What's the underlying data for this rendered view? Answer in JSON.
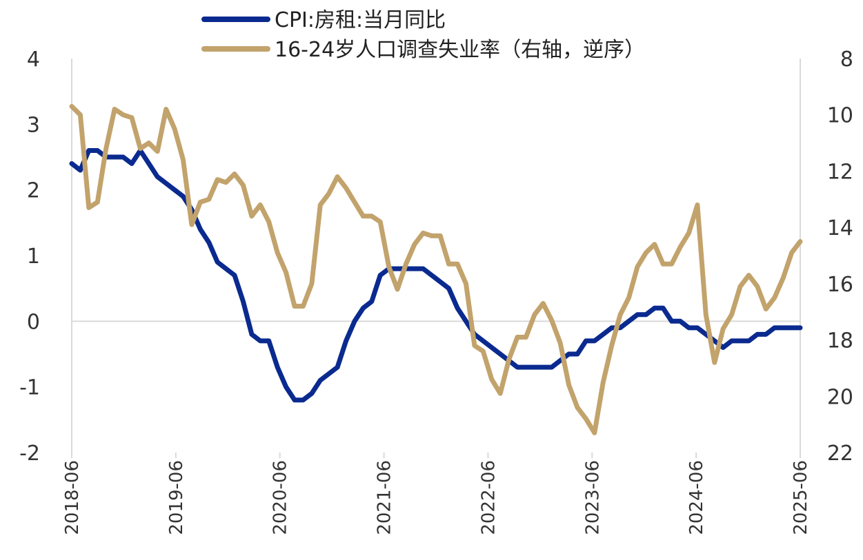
{
  "chart_data": {
    "type": "line",
    "title": "",
    "x_tick_labels": [
      "2018-06",
      "2019-06",
      "2020-06",
      "2021-06",
      "2022-06",
      "2023-06",
      "2024-06",
      "2025-06"
    ],
    "x_start": "2018-06",
    "x_end": "2025-06",
    "ylim_left": [
      -2,
      4
    ],
    "yticks_left": [
      "4",
      "3",
      "2",
      "1",
      "0",
      "-1",
      "-2"
    ],
    "ylim_right": [
      8,
      22
    ],
    "yticks_right": [
      "8",
      "10",
      "12",
      "14",
      "16",
      "18",
      "20",
      "22"
    ],
    "right_axis_inverted": true,
    "legend": [
      {
        "name": "CPI:房租:当月同比",
        "axis": "left",
        "color": "#0a2a8f"
      },
      {
        "name": "16-24岁人口调查失业率（右轴，逆序）",
        "axis": "right",
        "color": "#c2a36c"
      }
    ],
    "series": [
      {
        "name": "CPI:房租:当月同比",
        "axis": "left",
        "color": "#0a2a8f",
        "values": [
          2.4,
          2.3,
          2.6,
          2.6,
          2.5,
          2.5,
          2.5,
          2.4,
          2.6,
          2.4,
          2.2,
          2.1,
          2.0,
          1.9,
          1.7,
          1.4,
          1.2,
          0.9,
          0.8,
          0.7,
          0.3,
          -0.2,
          -0.3,
          -0.3,
          -0.7,
          -1.0,
          -1.2,
          -1.2,
          -1.1,
          -0.9,
          -0.8,
          -0.7,
          -0.3,
          0.0,
          0.2,
          0.3,
          0.7,
          0.8,
          0.8,
          0.8,
          0.8,
          0.8,
          0.7,
          0.6,
          0.5,
          0.2,
          0.0,
          -0.2,
          -0.3,
          -0.4,
          -0.5,
          -0.6,
          -0.7,
          -0.7,
          -0.7,
          -0.7,
          -0.7,
          -0.6,
          -0.5,
          -0.5,
          -0.3,
          -0.3,
          -0.2,
          -0.1,
          -0.1,
          0.0,
          0.1,
          0.1,
          0.2,
          0.2,
          0.0,
          0.0,
          -0.1,
          -0.1,
          -0.2,
          -0.3,
          -0.4,
          -0.3,
          -0.3,
          -0.3,
          -0.2,
          -0.2,
          -0.1,
          -0.1,
          -0.1,
          -0.1
        ]
      },
      {
        "name": "16-24岁人口调查失业率（右轴，逆序）",
        "axis": "right",
        "color": "#c2a36c",
        "values": [
          9.7,
          10.0,
          13.3,
          13.1,
          11.2,
          9.8,
          10.0,
          10.1,
          11.2,
          11.0,
          11.3,
          9.8,
          10.5,
          11.6,
          13.9,
          13.1,
          13.0,
          12.3,
          12.4,
          12.1,
          12.5,
          13.6,
          13.2,
          13.8,
          14.9,
          15.6,
          16.8,
          16.8,
          16.0,
          13.2,
          12.8,
          12.2,
          12.6,
          13.1,
          13.6,
          13.6,
          13.8,
          15.4,
          16.2,
          15.3,
          14.6,
          14.2,
          14.3,
          14.3,
          15.3,
          15.3,
          16.0,
          18.2,
          18.4,
          19.4,
          19.9,
          18.7,
          17.9,
          17.9,
          17.1,
          16.7,
          17.3,
          18.1,
          19.6,
          20.4,
          20.8,
          21.3,
          19.5,
          18.2,
          17.1,
          16.5,
          15.4,
          14.9,
          14.6,
          15.3,
          15.3,
          14.7,
          14.2,
          13.2,
          17.1,
          18.8,
          17.6,
          17.1,
          16.1,
          15.7,
          16.1,
          16.9,
          16.5,
          15.8,
          14.9,
          14.5
        ]
      }
    ]
  }
}
